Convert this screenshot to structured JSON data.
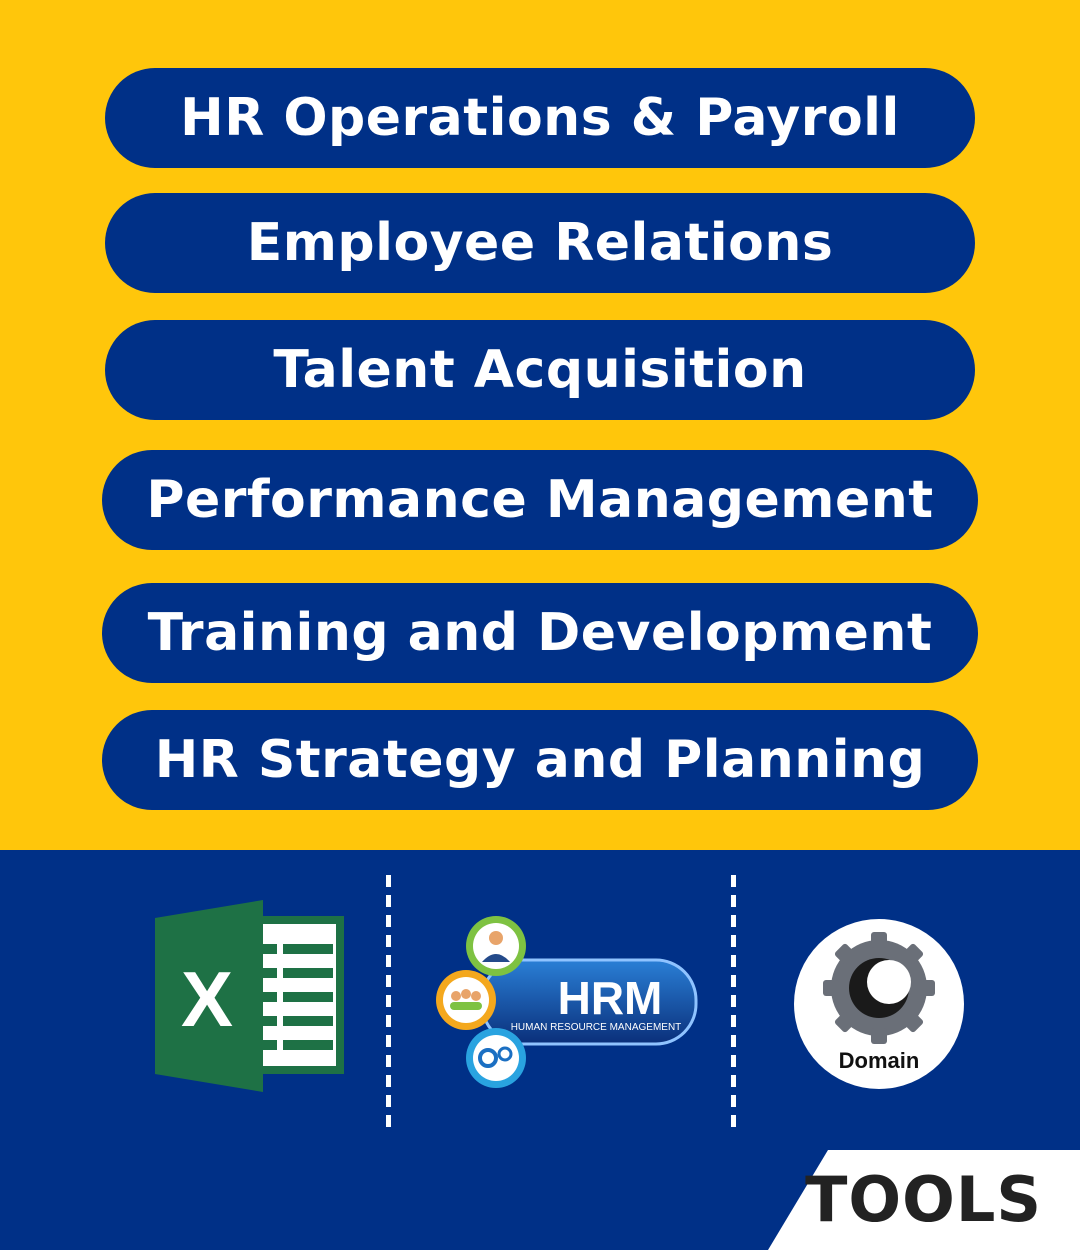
{
  "categories": [
    {
      "label": "HR Operations & Payroll"
    },
    {
      "label": "Employee Relations"
    },
    {
      "label": "Talent Acquisition"
    },
    {
      "label": "Performance Management"
    },
    {
      "label": "Training and Development"
    },
    {
      "label": "HR Strategy and Planning"
    }
  ],
  "tools": {
    "excel": {
      "letter": "X",
      "icon": "excel-icon"
    },
    "hrm": {
      "title": "HRM",
      "subtitle": "HUMAN RESOURCE MANAGEMENT",
      "icon": "hrm-icon"
    },
    "domain": {
      "label": "Domain",
      "icon": "gear-icon"
    }
  },
  "footer": {
    "label": "TOOLS"
  },
  "colors": {
    "background": "#FFC60B",
    "navy": "#003087",
    "excel_green": "#1E7145",
    "text_dark": "#222222"
  }
}
